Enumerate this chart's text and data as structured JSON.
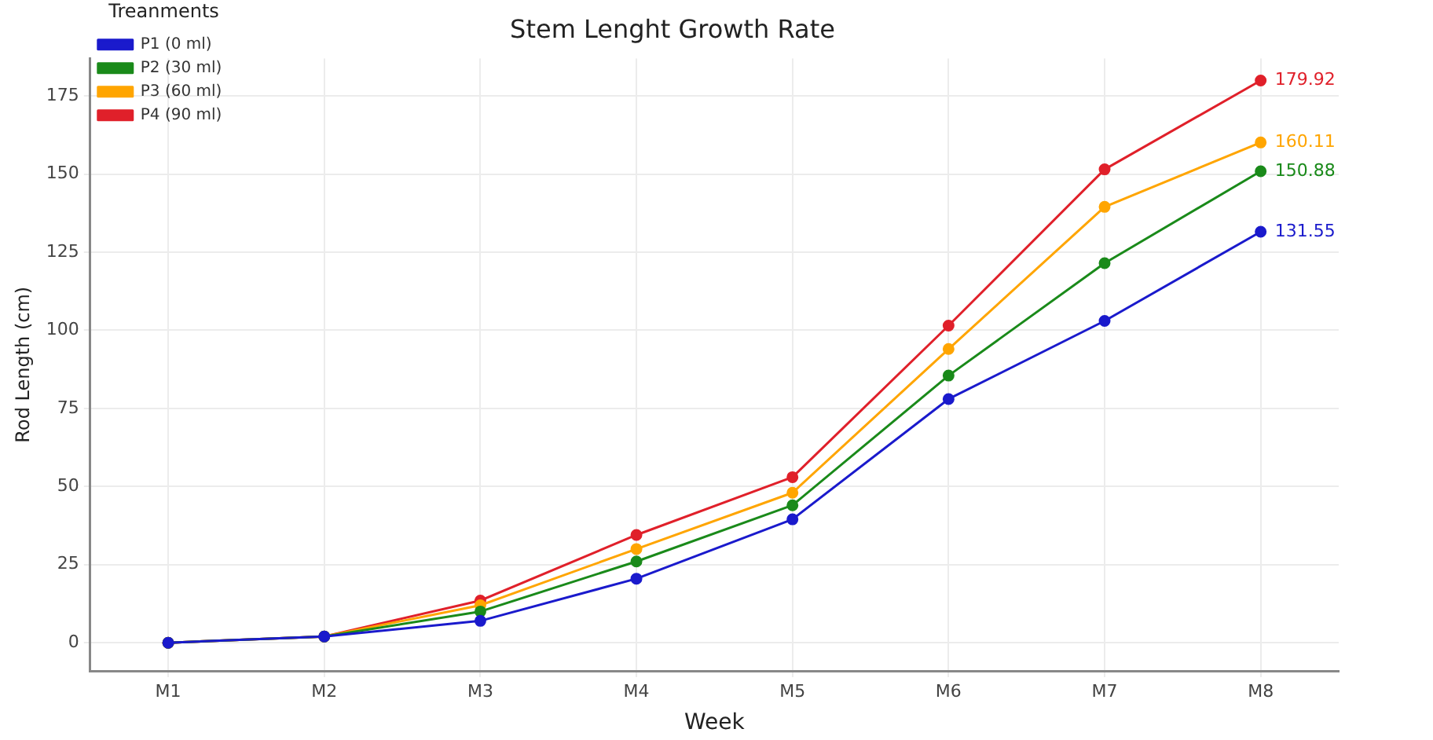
{
  "chart_data": {
    "type": "line",
    "title": "Stem Lenght Growth Rate",
    "xlabel": "Week",
    "ylabel": "Rod Length (cm)",
    "legend_title": "Treanments",
    "categories": [
      "M1",
      "M2",
      "M3",
      "M4",
      "M5",
      "M6",
      "M7",
      "M8"
    ],
    "series": [
      {
        "name": "P1 (0 ml)",
        "color": "#1a1acc",
        "values": [
          0,
          2,
          7,
          20.5,
          39.5,
          78,
          103,
          131.55
        ],
        "value_labels": [
          null,
          null,
          null,
          null,
          null,
          null,
          null,
          "131.55"
        ]
      },
      {
        "name": "P2 (30 ml)",
        "color": "#1a8a1a",
        "values": [
          0,
          2,
          10,
          26,
          44,
          85.5,
          121.5,
          150.88
        ],
        "value_labels": [
          null,
          null,
          null,
          null,
          null,
          null,
          null,
          "150.88"
        ]
      },
      {
        "name": "P3 (60 ml)",
        "color": "#ffa500",
        "values": [
          0,
          2,
          12,
          30,
          48,
          94,
          139.5,
          160.11
        ],
        "value_labels": [
          null,
          null,
          null,
          null,
          null,
          null,
          null,
          "160.11"
        ]
      },
      {
        "name": "P4 (90 ml)",
        "color": "#e0202a",
        "values": [
          0,
          2,
          13.5,
          34.5,
          53,
          101.5,
          151.5,
          179.92
        ],
        "value_labels": [
          null,
          null,
          null,
          null,
          null,
          null,
          null,
          "179.92"
        ]
      }
    ],
    "ylim": [
      -9,
      187
    ],
    "yticks": [
      0,
      25,
      50,
      75,
      100,
      125,
      150,
      175
    ],
    "grid": true,
    "legend": "top left",
    "marker": "circle",
    "line_style": "solid"
  }
}
